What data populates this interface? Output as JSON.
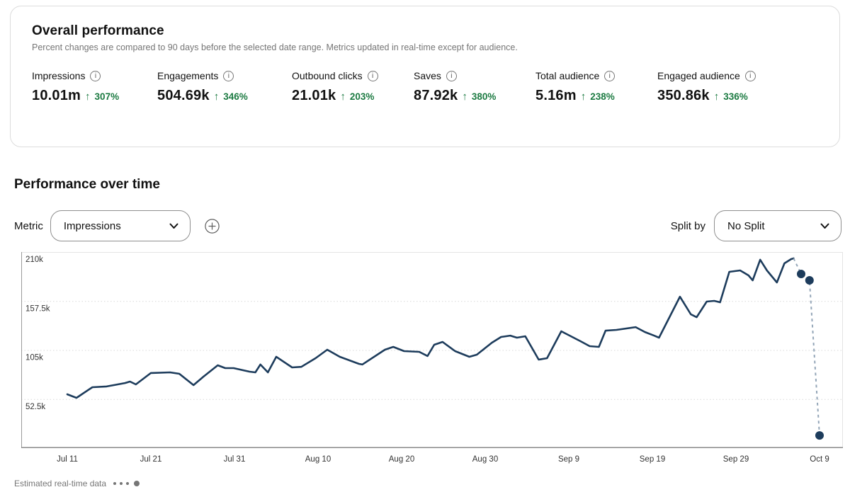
{
  "overall": {
    "title": "Overall performance",
    "subtitle": "Percent changes are compared to 90 days before the selected date range. Metrics updated in real-time except for audience.",
    "up_arrow": "↑",
    "info_glyph": "i",
    "metrics": [
      {
        "label": "Impressions",
        "value": "10.01m",
        "change": "307%"
      },
      {
        "label": "Engagements",
        "value": "504.69k",
        "change": "346%"
      },
      {
        "label": "Outbound clicks",
        "value": "21.01k",
        "change": "203%"
      },
      {
        "label": "Saves",
        "value": "87.92k",
        "change": "380%"
      },
      {
        "label": "Total audience",
        "value": "5.16m",
        "change": "238%"
      },
      {
        "label": "Engaged audience",
        "value": "350.86k",
        "change": "336%"
      }
    ]
  },
  "performance": {
    "title": "Performance over time",
    "metric_label": "Metric",
    "metric_value": "Impressions",
    "split_label": "Split by",
    "split_value": "No Split",
    "legend_note": "Estimated real-time data"
  },
  "colors": {
    "positive_green": "#1b7a41",
    "line_navy": "#1d3c5c",
    "estimated_gray_blue": "#94a6b8",
    "muted_text": "#767676"
  },
  "chart_data": {
    "type": "line",
    "title": "Performance over time",
    "metric": "Impressions",
    "xlabel": "",
    "ylabel": "",
    "ylim": [
      0,
      210000
    ],
    "grid": "horizontal-dotted",
    "legend_position": "none",
    "line_color": "#1d3c5c",
    "estimated_color": "#94a6b8",
    "yticks": [
      {
        "value": 210000,
        "label": "210k"
      },
      {
        "value": 157500,
        "label": "157.5k"
      },
      {
        "value": 105000,
        "label": "105k"
      },
      {
        "value": 52500,
        "label": "52.5k"
      }
    ],
    "xticks": [
      {
        "day": 0,
        "label": "Jul 11"
      },
      {
        "day": 10,
        "label": "Jul 21"
      },
      {
        "day": 20,
        "label": "Jul 31"
      },
      {
        "day": 30,
        "label": "Aug 10"
      },
      {
        "day": 40,
        "label": "Aug 20"
      },
      {
        "day": 50,
        "label": "Aug 30"
      },
      {
        "day": 60,
        "label": "Sep 9"
      },
      {
        "day": 70,
        "label": "Sep 19"
      },
      {
        "day": 80,
        "label": "Sep 29"
      },
      {
        "day": 90,
        "label": "Oct 9"
      }
    ],
    "series": [
      {
        "name": "Impressions",
        "points": [
          [
            0,
            57600
          ],
          [
            1.1,
            53800
          ],
          [
            3,
            65200
          ],
          [
            4.7,
            66000
          ],
          [
            6.9,
            69700
          ],
          [
            7.5,
            71300
          ],
          [
            8.2,
            68200
          ],
          [
            10,
            80400
          ],
          [
            12.3,
            81100
          ],
          [
            13.4,
            79600
          ],
          [
            15.1,
            67500
          ],
          [
            16.3,
            76600
          ],
          [
            18,
            88700
          ],
          [
            18.9,
            85700
          ],
          [
            19.9,
            85700
          ],
          [
            21.8,
            81900
          ],
          [
            22.5,
            81100
          ],
          [
            23.1,
            89500
          ],
          [
            24,
            81100
          ],
          [
            25,
            97800
          ],
          [
            26.9,
            86400
          ],
          [
            28,
            87000
          ],
          [
            29.7,
            96300
          ],
          [
            31.1,
            105400
          ],
          [
            32.6,
            97800
          ],
          [
            34.9,
            90200
          ],
          [
            35.3,
            89500
          ],
          [
            38,
            105400
          ],
          [
            39,
            108400
          ],
          [
            40.3,
            103900
          ],
          [
            42.1,
            103100
          ],
          [
            43.1,
            98600
          ],
          [
            43.9,
            110700
          ],
          [
            44.9,
            113700
          ],
          [
            46.4,
            103900
          ],
          [
            48.1,
            97800
          ],
          [
            49,
            100100
          ],
          [
            50.8,
            112900
          ],
          [
            51.9,
            119000
          ],
          [
            53,
            120500
          ],
          [
            53.8,
            118300
          ],
          [
            54.8,
            119800
          ],
          [
            56.4,
            94800
          ],
          [
            57.4,
            96300
          ],
          [
            59.1,
            125100
          ],
          [
            61.4,
            114500
          ],
          [
            62.5,
            109200
          ],
          [
            63.6,
            108400
          ],
          [
            64.4,
            125800
          ],
          [
            65.7,
            126600
          ],
          [
            68,
            129600
          ],
          [
            69.1,
            124300
          ],
          [
            70.2,
            120500
          ],
          [
            70.8,
            118300
          ],
          [
            73.3,
            162200
          ],
          [
            74.6,
            143300
          ],
          [
            75.3,
            140200
          ],
          [
            76.5,
            156900
          ],
          [
            77.4,
            157700
          ],
          [
            78.1,
            156200
          ],
          [
            79.2,
            188800
          ],
          [
            80.5,
            190300
          ],
          [
            81.5,
            185000
          ],
          [
            82,
            179700
          ],
          [
            82.9,
            201700
          ],
          [
            83.7,
            190300
          ],
          [
            84.9,
            177400
          ],
          [
            85.8,
            197900
          ],
          [
            86.6,
            202400
          ],
          [
            86.9,
            203200
          ]
        ]
      }
    ],
    "estimated_points": [
      [
        87.8,
        186500
      ],
      [
        88.8,
        179700
      ],
      [
        90,
        13600
      ]
    ]
  }
}
